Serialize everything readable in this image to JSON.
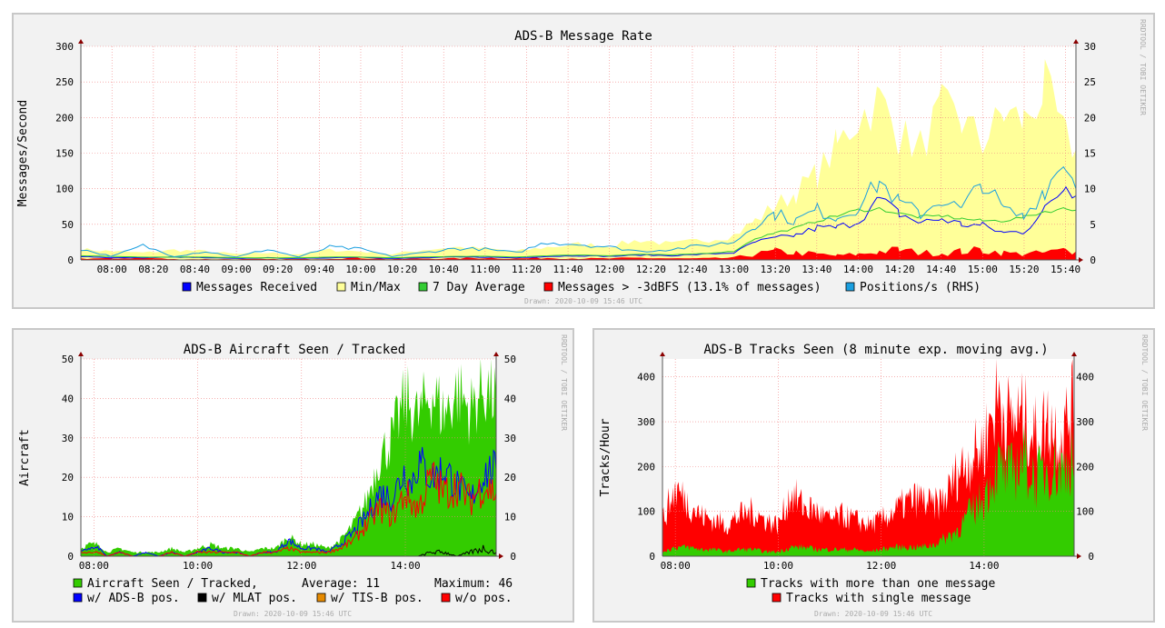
{
  "chart_data": [
    {
      "id": "rate",
      "type": "area",
      "title": "ADS-B Message Rate",
      "ylabel": "Messages/Second",
      "ylim": [
        0,
        300
      ],
      "y2lim": [
        0,
        30
      ],
      "yticks": [
        0,
        50,
        100,
        150,
        200,
        250,
        300
      ],
      "y2ticks": [
        0,
        5,
        10,
        15,
        20,
        25,
        30
      ],
      "xlim": [
        7.75,
        15.75
      ],
      "xticks": [
        "08:00",
        "08:20",
        "08:40",
        "09:00",
        "09:20",
        "09:40",
        "10:00",
        "10:20",
        "10:40",
        "11:00",
        "11:20",
        "11:40",
        "12:00",
        "12:20",
        "12:40",
        "13:00",
        "13:20",
        "13:40",
        "14:00",
        "14:20",
        "14:40",
        "15:00",
        "15:20",
        "15:40"
      ],
      "side_label": "RRDTOOL / TOBI OETIKER",
      "drawn": "Drawn: 2020-10-09 15:46 UTC",
      "legend": [
        {
          "label": "Messages Received",
          "color": "#0000ff"
        },
        {
          "label": "Min/Max",
          "color": "#ffff99"
        },
        {
          "label": "7 Day Average",
          "color": "#33cc33"
        },
        {
          "label": "Messages > -3dBFS (13.1% of messages)",
          "color": "#ff0000"
        },
        {
          "label": "Positions/s (RHS)",
          "color": "#1a9fe0"
        }
      ],
      "series": [
        {
          "name": "Min/Max",
          "color": "#ffff99",
          "x": [
            7.75,
            8.0,
            8.25,
            8.5,
            8.75,
            9.0,
            9.25,
            9.5,
            9.75,
            10.0,
            10.25,
            10.5,
            10.75,
            11.0,
            11.25,
            11.5,
            11.75,
            12.0,
            12.25,
            12.5,
            12.75,
            13.0,
            13.17,
            13.33,
            13.5,
            13.67,
            13.83,
            14.0,
            14.17,
            14.33,
            14.5,
            14.67,
            14.83,
            15.0,
            15.17,
            15.33,
            15.5,
            15.67,
            15.75
          ],
          "values": [
            15,
            12,
            10,
            14,
            12,
            8,
            10,
            8,
            14,
            12,
            8,
            14,
            18,
            16,
            12,
            18,
            22,
            20,
            28,
            22,
            28,
            35,
            55,
            75,
            95,
            120,
            160,
            200,
            225,
            175,
            160,
            210,
            195,
            165,
            205,
            195,
            240,
            170,
            155
          ]
        },
        {
          "name": "Messages > -3dBFS",
          "color": "#ff0000",
          "x": [
            7.75,
            8.0,
            8.25,
            8.5,
            8.75,
            9.0,
            9.25,
            9.5,
            9.75,
            10.0,
            10.25,
            10.5,
            10.75,
            11.0,
            11.25,
            11.5,
            11.75,
            12.0,
            12.25,
            12.5,
            12.75,
            13.0,
            13.17,
            13.33,
            13.5,
            13.67,
            13.83,
            14.0,
            14.17,
            14.33,
            14.5,
            14.67,
            14.83,
            15.0,
            15.17,
            15.33,
            15.5,
            15.67,
            15.75
          ],
          "values": [
            2,
            2,
            3,
            1,
            1,
            1,
            1,
            1,
            2,
            3,
            1,
            2,
            2,
            3,
            2,
            3,
            2,
            2,
            3,
            2,
            2,
            3,
            8,
            12,
            10,
            8,
            6,
            8,
            12,
            14,
            10,
            10,
            12,
            14,
            10,
            8,
            10,
            14,
            12
          ]
        },
        {
          "name": "Messages Received",
          "color": "#0000ff",
          "x": [
            7.75,
            8.0,
            8.25,
            8.5,
            8.75,
            9.0,
            9.25,
            9.5,
            9.75,
            10.0,
            10.25,
            10.5,
            10.75,
            11.0,
            11.25,
            11.5,
            11.75,
            12.0,
            12.25,
            12.5,
            12.75,
            13.0,
            13.17,
            13.33,
            13.5,
            13.67,
            13.83,
            14.0,
            14.17,
            14.33,
            14.5,
            14.67,
            14.83,
            15.0,
            15.17,
            15.33,
            15.5,
            15.67,
            15.75
          ],
          "values": [
            5,
            3,
            3,
            4,
            3,
            2,
            3,
            2,
            3,
            4,
            2,
            3,
            4,
            4,
            3,
            5,
            6,
            5,
            7,
            6,
            8,
            10,
            25,
            30,
            35,
            45,
            45,
            55,
            85,
            65,
            52,
            58,
            50,
            48,
            38,
            40,
            70,
            105,
            90
          ]
        },
        {
          "name": "7 Day Average",
          "color": "#33cc33",
          "x": [
            7.75,
            8.0,
            8.25,
            8.5,
            8.75,
            9.0,
            9.25,
            9.5,
            9.75,
            10.0,
            10.25,
            10.5,
            10.75,
            11.0,
            11.25,
            11.5,
            11.75,
            12.0,
            12.25,
            12.5,
            12.75,
            13.0,
            13.17,
            13.33,
            13.5,
            13.67,
            13.83,
            14.0,
            14.17,
            14.33,
            14.5,
            14.67,
            14.83,
            15.0,
            15.17,
            15.33,
            15.5,
            15.67,
            15.75
          ],
          "values": [
            6,
            5,
            4,
            4,
            4,
            3,
            3,
            3,
            4,
            4,
            3,
            4,
            5,
            5,
            4,
            6,
            7,
            6,
            8,
            7,
            9,
            12,
            30,
            38,
            45,
            55,
            62,
            70,
            72,
            65,
            60,
            62,
            58,
            55,
            55,
            60,
            68,
            72,
            70
          ]
        },
        {
          "name": "Positions/s (RHS)",
          "color": "#1a9fe0",
          "axis": "right",
          "x": [
            7.75,
            8.0,
            8.25,
            8.5,
            8.75,
            9.0,
            9.25,
            9.5,
            9.75,
            10.0,
            10.25,
            10.5,
            10.75,
            11.0,
            11.25,
            11.5,
            11.75,
            12.0,
            12.25,
            12.5,
            12.75,
            13.0,
            13.17,
            13.33,
            13.5,
            13.67,
            13.83,
            14.0,
            14.17,
            14.33,
            14.5,
            14.67,
            14.83,
            15.0,
            15.17,
            15.33,
            15.5,
            15.67,
            15.75
          ],
          "values": [
            1.5,
            0.5,
            2.0,
            0.5,
            1.2,
            0.4,
            1.5,
            0.4,
            1.8,
            1.5,
            0.5,
            1.0,
            1.6,
            1.5,
            1.0,
            2.5,
            2.2,
            1.8,
            1.2,
            1.5,
            2.0,
            2.5,
            5.0,
            6.5,
            5.5,
            7.0,
            6.0,
            7.5,
            11.0,
            8.0,
            6.5,
            8.5,
            7.0,
            11.0,
            7.0,
            6.0,
            10.0,
            14.0,
            10.0
          ]
        }
      ]
    },
    {
      "id": "aircraft",
      "type": "area",
      "title": "ADS-B Aircraft Seen / Tracked",
      "ylabel": "Aircraft",
      "ylim": [
        0,
        50
      ],
      "yticks": [
        0,
        10,
        20,
        30,
        40,
        50
      ],
      "y2ticks": [
        0,
        10,
        20,
        30,
        40,
        50
      ],
      "xlim": [
        7.75,
        15.75
      ],
      "xticks": [
        "08:00",
        "10:00",
        "12:00",
        "14:00"
      ],
      "side_label": "RRDTOOL / TOBI OETIKER",
      "drawn": "Drawn: 2020-10-09 15:46 UTC",
      "legend_main": {
        "label": "Aircraft Seen / Tracked,",
        "color": "#33cc00",
        "average": "Average: 11",
        "maximum": "Maximum: 46"
      },
      "legend": [
        {
          "label": "w/ ADS-B pos.",
          "color": "#0000ff"
        },
        {
          "label": "w/ MLAT pos.",
          "color": "#000000"
        },
        {
          "label": "w/ TIS-B pos.",
          "color": "#e68a00"
        },
        {
          "label": "w/o pos.",
          "color": "#ff0000"
        }
      ],
      "series": [
        {
          "name": "Aircraft Seen / Tracked",
          "color": "#33cc00",
          "x": [
            7.75,
            7.9,
            8.1,
            8.25,
            8.5,
            8.75,
            9.0,
            9.25,
            9.5,
            9.75,
            10.0,
            10.25,
            10.5,
            10.75,
            11.0,
            11.25,
            11.5,
            11.75,
            12.0,
            12.25,
            12.5,
            12.75,
            13.0,
            13.25,
            13.5,
            13.75,
            14.0,
            14.1,
            14.25,
            14.5,
            14.75,
            15.0,
            15.25,
            15.5,
            15.75
          ],
          "values": [
            2,
            3,
            3,
            1,
            2,
            1,
            1,
            1,
            2,
            1,
            2,
            3,
            2,
            2,
            1,
            2,
            2,
            5,
            3,
            3,
            2,
            4,
            8,
            14,
            25,
            30,
            40,
            38,
            35,
            42,
            36,
            42,
            37,
            43,
            40
          ]
        },
        {
          "name": "w/ ADS-B pos.",
          "color": "#0000ff",
          "x": [
            7.75,
            7.9,
            8.1,
            8.25,
            8.5,
            8.75,
            9.0,
            9.25,
            9.5,
            9.75,
            10.0,
            10.25,
            10.5,
            10.75,
            11.0,
            11.25,
            11.5,
            11.75,
            12.0,
            12.25,
            12.5,
            12.75,
            13.0,
            13.25,
            13.5,
            13.75,
            14.0,
            14.1,
            14.25,
            14.5,
            14.75,
            15.0,
            15.25,
            15.5,
            15.75
          ],
          "values": [
            1,
            2,
            2,
            0,
            1,
            0,
            1,
            0,
            1,
            0,
            1,
            2,
            1,
            1,
            0,
            1,
            1,
            4,
            2,
            2,
            1,
            3,
            6,
            10,
            16,
            15,
            22,
            18,
            24,
            20,
            22,
            18,
            14,
            21,
            22
          ]
        },
        {
          "name": "w/o pos.",
          "color": "#ff0000",
          "x": [
            7.75,
            7.9,
            8.1,
            8.25,
            8.5,
            8.75,
            9.0,
            9.25,
            9.5,
            9.75,
            10.0,
            10.25,
            10.5,
            10.75,
            11.0,
            11.25,
            11.5,
            11.75,
            12.0,
            12.25,
            12.5,
            12.75,
            13.0,
            13.25,
            13.5,
            13.75,
            14.0,
            14.1,
            14.25,
            14.5,
            14.75,
            15.0,
            15.25,
            15.5,
            15.75
          ],
          "values": [
            1,
            1,
            1,
            0,
            1,
            0,
            0,
            0,
            1,
            0,
            1,
            1,
            1,
            1,
            0,
            1,
            1,
            2,
            1,
            1,
            1,
            2,
            4,
            8,
            12,
            10,
            16,
            14,
            12,
            20,
            16,
            18,
            14,
            18,
            16
          ]
        },
        {
          "name": "w/ MLAT pos.",
          "color": "#000000",
          "x": [
            7.75,
            14.0,
            14.25,
            14.5,
            14.75,
            15.0,
            15.25,
            15.5,
            15.75
          ],
          "values": [
            0,
            0,
            0,
            1,
            1,
            0,
            1,
            2,
            1
          ]
        }
      ]
    },
    {
      "id": "tracks",
      "type": "area",
      "title": "ADS-B Tracks Seen (8 minute exp. moving avg.)",
      "ylabel": "Tracks/Hour",
      "ylim": [
        0,
        440
      ],
      "yticks": [
        0,
        100,
        200,
        300,
        400
      ],
      "y2ticks": [
        0,
        100,
        200,
        300,
        400
      ],
      "xlim": [
        7.75,
        15.75
      ],
      "xticks": [
        "08:00",
        "10:00",
        "12:00",
        "14:00"
      ],
      "side_label": "RRDTOOL / TOBI OETIKER",
      "drawn": "Drawn: 2020-10-09 15:46 UTC",
      "legend": [
        {
          "label": "Tracks with more than one message",
          "color": "#33cc00"
        },
        {
          "label": "Tracks with single message",
          "color": "#ff0000"
        }
      ],
      "series": [
        {
          "name": "Tracks with single message",
          "color": "#ff0000",
          "x": [
            7.75,
            8.0,
            8.25,
            8.5,
            8.75,
            9.0,
            9.25,
            9.5,
            9.75,
            10.0,
            10.25,
            10.5,
            10.75,
            11.0,
            11.25,
            11.5,
            11.75,
            12.0,
            12.25,
            12.5,
            12.75,
            13.0,
            13.25,
            13.5,
            13.75,
            14.0,
            14.25,
            14.5,
            14.75,
            15.0,
            15.25,
            15.5,
            15.75
          ],
          "values": [
            80,
            150,
            120,
            90,
            80,
            70,
            90,
            100,
            80,
            70,
            140,
            110,
            100,
            80,
            90,
            80,
            70,
            80,
            100,
            120,
            130,
            110,
            130,
            190,
            220,
            250,
            360,
            300,
            310,
            270,
            300,
            270,
            340
          ]
        },
        {
          "name": "Tracks with more than one message",
          "color": "#33cc00",
          "x": [
            7.75,
            8.0,
            8.25,
            8.5,
            8.75,
            9.0,
            9.25,
            9.5,
            9.75,
            10.0,
            10.25,
            10.5,
            10.75,
            11.0,
            11.25,
            11.5,
            11.75,
            12.0,
            12.25,
            12.5,
            12.75,
            13.0,
            13.25,
            13.5,
            13.75,
            14.0,
            14.25,
            14.5,
            14.75,
            15.0,
            15.25,
            15.5,
            15.75
          ],
          "values": [
            10,
            20,
            20,
            15,
            15,
            10,
            15,
            15,
            10,
            10,
            20,
            20,
            15,
            15,
            15,
            15,
            10,
            15,
            20,
            20,
            20,
            25,
            40,
            60,
            100,
            130,
            200,
            180,
            220,
            170,
            200,
            190,
            230
          ]
        }
      ]
    }
  ]
}
